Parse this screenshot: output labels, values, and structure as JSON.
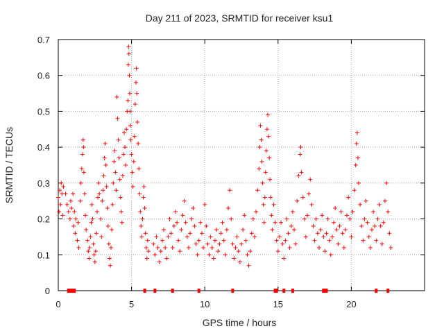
{
  "chart_data": {
    "type": "scatter",
    "title": "Day 211 of 2023, SRMTID for receiver ksu1",
    "xlabel": "GPS time / hours",
    "ylabel": "SRMTID / TECUs",
    "xlim": [
      0,
      25
    ],
    "ylim": [
      0,
      0.7
    ],
    "x_ticks": [
      0,
      5,
      10,
      15,
      20
    ],
    "y_ticks": [
      0,
      0.1,
      0.2,
      0.3,
      0.4,
      0.5,
      0.6,
      0.7
    ],
    "x_tick_labels": [
      "0",
      "5",
      "10",
      "15",
      "20"
    ],
    "y_tick_labels": [
      "0",
      "0.1",
      "0.2",
      "0.3",
      "0.4",
      "0.5",
      "0.6",
      "0.7"
    ],
    "grid": true,
    "marker": "+",
    "color": "#ff0000",
    "series": [
      {
        "name": "SRMTID",
        "points": [
          [
            0.0,
            0.26
          ],
          [
            0.05,
            0.22
          ],
          [
            0.1,
            0.28
          ],
          [
            0.15,
            0.24
          ],
          [
            0.2,
            0.3
          ],
          [
            0.25,
            0.27
          ],
          [
            0.3,
            0.21
          ],
          [
            0.35,
            0.29
          ],
          [
            0.5,
            0.27
          ],
          [
            0.6,
            0.24
          ],
          [
            0.7,
            0.22
          ],
          [
            0.8,
            0.2
          ],
          [
            0.85,
            0.25
          ],
          [
            0.9,
            0.23
          ],
          [
            1.0,
            0.27
          ],
          [
            1.05,
            0.18
          ],
          [
            1.1,
            0.22
          ],
          [
            1.15,
            0.16
          ],
          [
            1.2,
            0.2
          ],
          [
            1.3,
            0.14
          ],
          [
            1.35,
            0.19
          ],
          [
            1.4,
            0.12
          ],
          [
            1.5,
            0.25
          ],
          [
            1.55,
            0.3
          ],
          [
            1.6,
            0.34
          ],
          [
            1.65,
            0.38
          ],
          [
            1.7,
            0.42
          ],
          [
            1.72,
            0.4
          ],
          [
            1.75,
            0.33
          ],
          [
            1.8,
            0.27
          ],
          [
            1.85,
            0.21
          ],
          [
            1.9,
            0.17
          ],
          [
            2.0,
            0.14
          ],
          [
            2.05,
            0.11
          ],
          [
            2.1,
            0.09
          ],
          [
            2.15,
            0.12
          ],
          [
            2.2,
            0.15
          ],
          [
            2.25,
            0.19
          ],
          [
            2.3,
            0.24
          ],
          [
            2.35,
            0.2
          ],
          [
            2.4,
            0.13
          ],
          [
            2.45,
            0.1
          ],
          [
            2.5,
            0.08
          ],
          [
            2.55,
            0.11
          ],
          [
            2.6,
            0.16
          ],
          [
            2.65,
            0.22
          ],
          [
            2.7,
            0.26
          ],
          [
            2.75,
            0.3
          ],
          [
            2.8,
            0.27
          ],
          [
            2.9,
            0.2
          ],
          [
            2.95,
            0.15
          ],
          [
            3.0,
            0.25
          ],
          [
            3.05,
            0.28
          ],
          [
            3.1,
            0.32
          ],
          [
            3.15,
            0.37
          ],
          [
            3.2,
            0.41
          ],
          [
            3.25,
            0.35
          ],
          [
            3.3,
            0.29
          ],
          [
            3.35,
            0.23
          ],
          [
            3.4,
            0.18
          ],
          [
            3.45,
            0.13
          ],
          [
            3.5,
            0.09
          ],
          [
            3.55,
            0.07
          ],
          [
            3.6,
            0.12
          ],
          [
            3.65,
            0.17
          ],
          [
            3.7,
            0.24
          ],
          [
            3.75,
            0.3
          ],
          [
            3.8,
            0.36
          ],
          [
            3.85,
            0.39
          ],
          [
            3.9,
            0.33
          ],
          [
            3.95,
            0.28
          ],
          [
            4.0,
            0.54
          ],
          [
            4.05,
            0.48
          ],
          [
            4.1,
            0.42
          ],
          [
            4.15,
            0.37
          ],
          [
            4.2,
            0.31
          ],
          [
            4.25,
            0.26
          ],
          [
            4.3,
            0.22
          ],
          [
            4.35,
            0.19
          ],
          [
            4.4,
            0.32
          ],
          [
            4.45,
            0.38
          ],
          [
            4.5,
            0.44
          ],
          [
            4.55,
            0.4
          ],
          [
            4.6,
            0.35
          ],
          [
            4.65,
            0.45
          ],
          [
            4.7,
            0.5
          ],
          [
            4.75,
            0.53
          ],
          [
            4.78,
            0.63
          ],
          [
            4.8,
            0.68
          ],
          [
            4.82,
            0.66
          ],
          [
            4.85,
            0.6
          ],
          [
            4.88,
            0.55
          ],
          [
            4.9,
            0.5
          ],
          [
            4.92,
            0.46
          ],
          [
            4.95,
            0.42
          ],
          [
            5.0,
            0.38
          ],
          [
            5.05,
            0.33
          ],
          [
            5.1,
            0.29
          ],
          [
            5.15,
            0.36
          ],
          [
            5.2,
            0.43
          ],
          [
            5.25,
            0.52
          ],
          [
            5.3,
            0.58
          ],
          [
            5.33,
            0.62
          ],
          [
            5.36,
            0.55
          ],
          [
            5.4,
            0.47
          ],
          [
            5.45,
            0.41
          ],
          [
            5.5,
            0.34
          ],
          [
            5.55,
            0.27
          ],
          [
            5.6,
            0.22
          ],
          [
            5.65,
            0.18
          ],
          [
            5.7,
            0.15
          ],
          [
            5.75,
            0.2
          ],
          [
            5.8,
            0.26
          ],
          [
            5.85,
            0.29
          ],
          [
            5.9,
            0.23
          ],
          [
            5.95,
            0.16
          ],
          [
            6.0,
            0.12
          ],
          [
            6.05,
            0.09
          ],
          [
            6.1,
            0.14
          ],
          [
            6.15,
            0.11
          ],
          [
            6.5,
            0.13
          ],
          [
            6.6,
            0.1
          ],
          [
            6.7,
            0.15
          ],
          [
            6.8,
            0.12
          ],
          [
            6.9,
            0.08
          ],
          [
            7.0,
            0.11
          ],
          [
            7.1,
            0.14
          ],
          [
            7.2,
            0.17
          ],
          [
            7.3,
            0.12
          ],
          [
            7.4,
            0.09
          ],
          [
            7.5,
            0.15
          ],
          [
            7.6,
            0.2
          ],
          [
            7.7,
            0.16
          ],
          [
            7.8,
            0.12
          ],
          [
            7.9,
            0.18
          ],
          [
            8.0,
            0.22
          ],
          [
            8.1,
            0.19
          ],
          [
            8.2,
            0.14
          ],
          [
            8.3,
            0.11
          ],
          [
            8.4,
            0.17
          ],
          [
            8.5,
            0.21
          ],
          [
            8.6,
            0.25
          ],
          [
            8.7,
            0.19
          ],
          [
            8.8,
            0.15
          ],
          [
            8.9,
            0.12
          ],
          [
            9.0,
            0.16
          ],
          [
            9.1,
            0.2
          ],
          [
            9.2,
            0.23
          ],
          [
            9.3,
            0.18
          ],
          [
            9.4,
            0.13
          ],
          [
            9.5,
            0.1
          ],
          [
            9.6,
            0.14
          ],
          [
            9.7,
            0.19
          ],
          [
            9.8,
            0.16
          ],
          [
            9.9,
            0.12
          ],
          [
            10.0,
            0.24
          ],
          [
            10.1,
            0.18
          ],
          [
            10.2,
            0.13
          ],
          [
            10.3,
            0.1
          ],
          [
            10.4,
            0.15
          ],
          [
            10.5,
            0.12
          ],
          [
            10.6,
            0.09
          ],
          [
            10.7,
            0.14
          ],
          [
            10.8,
            0.17
          ],
          [
            10.9,
            0.11
          ],
          [
            11.0,
            0.13
          ],
          [
            11.1,
            0.16
          ],
          [
            11.2,
            0.19
          ],
          [
            11.3,
            0.14
          ],
          [
            11.4,
            0.1
          ],
          [
            11.5,
            0.17
          ],
          [
            11.6,
            0.23
          ],
          [
            11.7,
            0.28
          ],
          [
            11.8,
            0.2
          ],
          [
            11.9,
            0.13
          ],
          [
            12.0,
            0.09
          ],
          [
            12.1,
            0.12
          ],
          [
            12.2,
            0.15
          ],
          [
            12.3,
            0.11
          ],
          [
            12.4,
            0.08
          ],
          [
            12.5,
            0.13
          ],
          [
            12.6,
            0.17
          ],
          [
            12.7,
            0.21
          ],
          [
            12.8,
            0.14
          ],
          [
            12.9,
            0.1
          ],
          [
            13.0,
            0.07
          ],
          [
            13.1,
            0.11
          ],
          [
            13.2,
            0.16
          ],
          [
            13.3,
            0.2
          ],
          [
            13.4,
            0.15
          ],
          [
            13.5,
            0.22
          ],
          [
            13.6,
            0.28
          ],
          [
            13.7,
            0.34
          ],
          [
            13.75,
            0.4
          ],
          [
            13.8,
            0.46
          ],
          [
            13.85,
            0.42
          ],
          [
            13.9,
            0.36
          ],
          [
            13.95,
            0.3
          ],
          [
            14.0,
            0.24
          ],
          [
            14.05,
            0.19
          ],
          [
            14.1,
            0.26
          ],
          [
            14.15,
            0.33
          ],
          [
            14.2,
            0.39
          ],
          [
            14.25,
            0.45
          ],
          [
            14.3,
            0.49
          ],
          [
            14.35,
            0.43
          ],
          [
            14.4,
            0.37
          ],
          [
            14.45,
            0.31
          ],
          [
            14.5,
            0.26
          ],
          [
            14.55,
            0.21
          ],
          [
            14.6,
            0.17
          ],
          [
            14.7,
            0.24
          ],
          [
            14.8,
            0.19
          ],
          [
            14.9,
            0.14
          ],
          [
            15.0,
            0.11
          ],
          [
            15.1,
            0.15
          ],
          [
            15.2,
            0.19
          ],
          [
            15.3,
            0.13
          ],
          [
            15.4,
            0.09
          ],
          [
            15.5,
            0.14
          ],
          [
            15.6,
            0.2
          ],
          [
            15.7,
            0.16
          ],
          [
            15.8,
            0.12
          ],
          [
            15.9,
            0.18
          ],
          [
            16.0,
            0.22
          ],
          [
            16.1,
            0.17
          ],
          [
            16.2,
            0.13
          ],
          [
            16.3,
            0.25
          ],
          [
            16.4,
            0.32
          ],
          [
            16.5,
            0.38
          ],
          [
            16.55,
            0.4
          ],
          [
            16.6,
            0.33
          ],
          [
            16.7,
            0.26
          ],
          [
            16.8,
            0.2
          ],
          [
            16.9,
            0.15
          ],
          [
            17.0,
            0.21
          ],
          [
            17.1,
            0.27
          ],
          [
            17.2,
            0.31
          ],
          [
            17.3,
            0.24
          ],
          [
            17.4,
            0.18
          ],
          [
            17.5,
            0.14
          ],
          [
            17.6,
            0.2
          ],
          [
            17.7,
            0.16
          ],
          [
            17.8,
            0.12
          ],
          [
            17.9,
            0.17
          ],
          [
            18.0,
            0.21
          ],
          [
            18.1,
            0.15
          ],
          [
            18.2,
            0.11
          ],
          [
            18.3,
            0.16
          ],
          [
            18.4,
            0.2
          ],
          [
            18.5,
            0.14
          ],
          [
            18.6,
            0.1
          ],
          [
            18.7,
            0.15
          ],
          [
            18.8,
            0.19
          ],
          [
            18.9,
            0.23
          ],
          [
            19.0,
            0.17
          ],
          [
            19.1,
            0.13
          ],
          [
            19.2,
            0.18
          ],
          [
            19.3,
            0.22
          ],
          [
            19.4,
            0.16
          ],
          [
            19.5,
            0.12
          ],
          [
            19.6,
            0.17
          ],
          [
            19.7,
            0.21
          ],
          [
            19.8,
            0.26
          ],
          [
            19.9,
            0.2
          ],
          [
            20.0,
            0.15
          ],
          [
            20.1,
            0.22
          ],
          [
            20.2,
            0.28
          ],
          [
            20.3,
            0.35
          ],
          [
            20.35,
            0.41
          ],
          [
            20.4,
            0.44
          ],
          [
            20.45,
            0.37
          ],
          [
            20.5,
            0.3
          ],
          [
            20.6,
            0.24
          ],
          [
            20.7,
            0.18
          ],
          [
            20.8,
            0.14
          ],
          [
            20.9,
            0.2
          ],
          [
            21.0,
            0.25
          ],
          [
            21.1,
            0.19
          ],
          [
            21.2,
            0.15
          ],
          [
            21.3,
            0.12
          ],
          [
            21.4,
            0.17
          ],
          [
            21.5,
            0.22
          ],
          [
            21.6,
            0.18
          ],
          [
            21.7,
            0.14
          ],
          [
            21.8,
            0.2
          ],
          [
            21.9,
            0.24
          ],
          [
            22.0,
            0.18
          ],
          [
            22.1,
            0.13
          ],
          [
            22.2,
            0.19
          ],
          [
            22.3,
            0.25
          ],
          [
            22.4,
            0.3
          ],
          [
            22.5,
            0.22
          ],
          [
            22.6,
            0.16
          ],
          [
            22.7,
            0.12
          ]
        ]
      }
    ],
    "gap_markers_x": [
      0.7,
      0.8,
      0.9,
      1.0,
      1.1,
      5.9,
      6.6,
      7.8,
      9.6,
      11.9,
      14.8,
      14.9,
      15.4,
      16.0,
      18.1,
      18.2,
      18.3,
      21.7,
      22.5
    ]
  }
}
